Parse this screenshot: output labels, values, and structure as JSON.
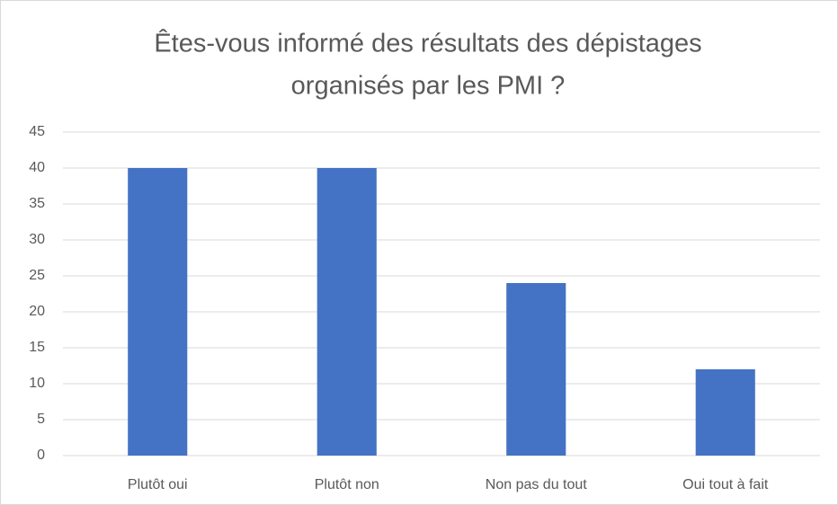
{
  "chart_data": {
    "type": "bar",
    "title": [
      "Êtes-vous informé des résultats des dépistages",
      "organisés par les PMI ?"
    ],
    "categories": [
      "Plutôt oui",
      "Plutôt non",
      "Non pas du tout",
      "Oui tout à fait"
    ],
    "values": [
      40,
      40,
      24,
      12
    ],
    "color": "#4472c4",
    "ylim": [
      0,
      45
    ],
    "yticks": [
      0,
      5,
      10,
      15,
      20,
      25,
      30,
      35,
      40,
      45
    ],
    "grid": true
  }
}
